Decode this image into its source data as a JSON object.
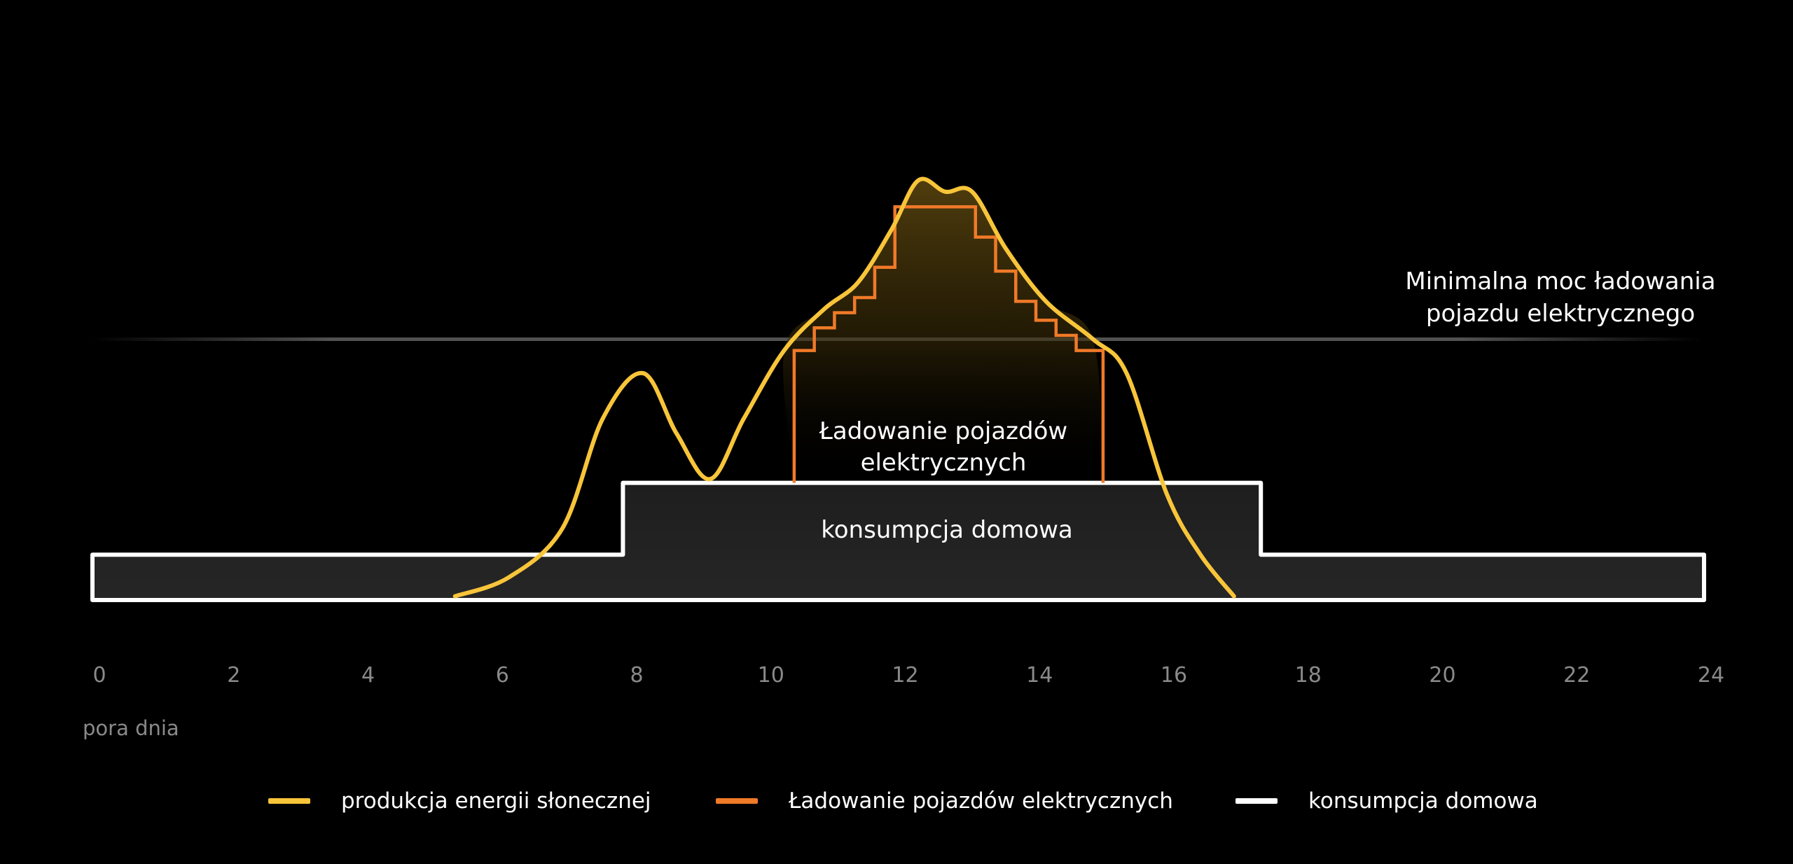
{
  "chart_data": {
    "type": "area",
    "xlabel": "pora dnia",
    "ylabel": "",
    "xlim": [
      0,
      24
    ],
    "x_ticks": [
      "0",
      "2",
      "4",
      "6",
      "8",
      "10",
      "12",
      "14",
      "16",
      "18",
      "20",
      "22",
      "24"
    ],
    "grid": false,
    "legend_position": "bottom",
    "threshold": {
      "label_line1": "Minimalna moc ładowania",
      "label_line2": "pojazdu elektrycznego",
      "y": 0.66
    },
    "annotations": {
      "ev_line1": "Ładowanie pojazdów",
      "ev_line2": "elektrycznych",
      "home": "konsumpcja domowa"
    },
    "series": [
      {
        "name": "produkcja energii słonecznej",
        "color": "#F8C53A",
        "x": [
          5.4,
          6.2,
          7.0,
          7.6,
          8.2,
          8.7,
          9.2,
          9.7,
          10.3,
          10.9,
          11.4,
          11.9,
          12.3,
          12.7,
          13.1,
          13.6,
          14.2,
          14.9,
          15.4,
          16.0,
          16.5,
          17.0
        ],
        "y": [
          0.01,
          0.06,
          0.19,
          0.48,
          0.6,
          0.44,
          0.32,
          0.48,
          0.66,
          0.77,
          0.84,
          0.98,
          1.11,
          1.08,
          1.08,
          0.93,
          0.79,
          0.69,
          0.6,
          0.28,
          0.12,
          0.01
        ]
      },
      {
        "name": "Ładowanie pojazdów elektrycznych",
        "color": "#F07A28",
        "x": [
          10.45,
          10.45,
          10.75,
          10.75,
          11.05,
          11.05,
          11.35,
          11.35,
          11.65,
          11.65,
          11.95,
          11.95,
          13.15,
          13.15,
          13.45,
          13.45,
          13.75,
          13.75,
          14.05,
          14.05,
          14.35,
          14.35,
          14.65,
          14.65,
          15.05,
          15.05
        ],
        "y": [
          0.31,
          0.66,
          0.66,
          0.72,
          0.72,
          0.76,
          0.76,
          0.8,
          0.8,
          0.88,
          0.88,
          1.04,
          1.04,
          0.96,
          0.96,
          0.87,
          0.87,
          0.79,
          0.79,
          0.74,
          0.74,
          0.7,
          0.7,
          0.66,
          0.66,
          0.31
        ]
      },
      {
        "name": "konsumpcja domowa",
        "color": "#FFFFFF",
        "x": [
          0,
          7.9,
          7.9,
          17.4,
          17.4,
          24
        ],
        "y": [
          0.12,
          0.12,
          0.31,
          0.31,
          0.12,
          0.12
        ]
      }
    ]
  }
}
